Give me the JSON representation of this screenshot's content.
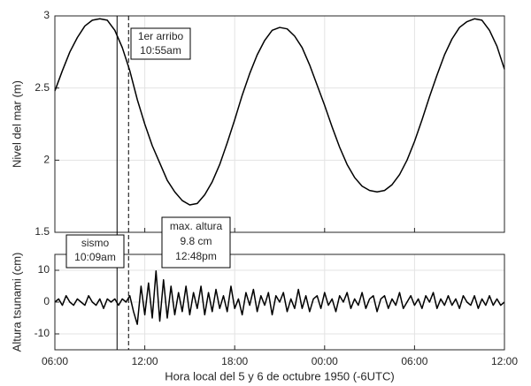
{
  "chart_data": [
    {
      "type": "line",
      "ylabel": "Nivel del mar (m)",
      "x": [
        6,
        6.5,
        7,
        7.5,
        8,
        8.5,
        9,
        9.5,
        10,
        10.5,
        11,
        11.5,
        12,
        12.5,
        13,
        13.5,
        14,
        14.5,
        15,
        15.5,
        16,
        16.5,
        17,
        17.5,
        18,
        18.5,
        19,
        19.5,
        20,
        20.5,
        21,
        21.5,
        22,
        22.5,
        23,
        23.5,
        24,
        24.5,
        25,
        25.5,
        26,
        26.5,
        27,
        27.5,
        28,
        28.5,
        29,
        29.5,
        30,
        30.5,
        31,
        31.5,
        32,
        32.5,
        33,
        33.5,
        34,
        34.5,
        35,
        35.5,
        36
      ],
      "series": [
        {
          "color": "#000000",
          "values": [
            2.48,
            2.62,
            2.75,
            2.85,
            2.93,
            2.97,
            2.98,
            2.97,
            2.9,
            2.78,
            2.62,
            2.42,
            2.25,
            2.1,
            1.98,
            1.86,
            1.78,
            1.72,
            1.69,
            1.7,
            1.76,
            1.85,
            1.97,
            2.12,
            2.28,
            2.45,
            2.6,
            2.73,
            2.83,
            2.9,
            2.92,
            2.91,
            2.86,
            2.78,
            2.66,
            2.52,
            2.38,
            2.23,
            2.09,
            1.97,
            1.88,
            1.82,
            1.79,
            1.78,
            1.79,
            1.83,
            1.9,
            2.0,
            2.13,
            2.28,
            2.44,
            2.59,
            2.73,
            2.84,
            2.92,
            2.96,
            2.98,
            2.97,
            2.9,
            2.79,
            2.63
          ]
        }
      ],
      "xlim": [
        6,
        36
      ],
      "xticks": [
        6,
        12,
        18,
        24,
        30,
        36
      ],
      "ylim": [
        1.5,
        3
      ],
      "yticks": [
        1.5,
        2,
        2.5,
        3
      ],
      "grid": true,
      "events": [
        {
          "x": 10.15,
          "dashed": false,
          "label": [
            "sismo",
            "10:09am"
          ]
        },
        {
          "x": 10.9167,
          "dashed": true,
          "label": [
            "1er arribo",
            "10:55am"
          ]
        }
      ]
    },
    {
      "type": "line",
      "ylabel": "Altura tsunami (cm)",
      "xlabel": "Hora local del 5 y 6 de octubre 1950 (-6UTC)",
      "x": [
        6,
        6.25,
        6.5,
        6.75,
        7,
        7.25,
        7.5,
        7.75,
        8,
        8.25,
        8.5,
        8.75,
        9,
        9.25,
        9.5,
        9.75,
        10,
        10.25,
        10.5,
        10.75,
        11,
        11.25,
        11.5,
        11.75,
        12,
        12.25,
        12.5,
        12.75,
        13,
        13.25,
        13.5,
        13.75,
        14,
        14.25,
        14.5,
        14.75,
        15,
        15.25,
        15.5,
        15.75,
        16,
        16.25,
        16.5,
        16.75,
        17,
        17.25,
        17.5,
        17.75,
        18,
        18.25,
        18.5,
        18.75,
        19,
        19.25,
        19.5,
        19.75,
        20,
        20.25,
        20.5,
        20.75,
        21,
        21.25,
        21.5,
        21.75,
        22,
        22.25,
        22.5,
        22.75,
        23,
        23.25,
        23.5,
        23.75,
        24,
        24.25,
        24.5,
        24.75,
        25,
        25.25,
        25.5,
        25.75,
        26,
        26.25,
        26.5,
        26.75,
        27,
        27.25,
        27.5,
        27.75,
        28,
        28.25,
        28.5,
        28.75,
        29,
        29.25,
        29.5,
        29.75,
        30,
        30.25,
        30.5,
        30.75,
        31,
        31.25,
        31.5,
        31.75,
        32,
        32.25,
        32.5,
        32.75,
        33,
        33.25,
        33.5,
        33.75,
        34,
        34.25,
        34.5,
        34.75,
        35,
        35.25,
        35.5,
        35.75,
        36
      ],
      "series": [
        {
          "color": "#000000",
          "values": [
            0,
            1,
            -1,
            2,
            0,
            -1,
            1,
            0,
            -1,
            2,
            0,
            -1,
            1,
            -2,
            1,
            0,
            1,
            -1,
            1,
            0,
            2,
            -3,
            -7,
            5,
            -4,
            6,
            -5,
            9.8,
            -6,
            7,
            -5,
            5,
            -4,
            3,
            -3,
            5,
            -4,
            3,
            -2,
            5,
            -4,
            3,
            -3,
            4,
            -2,
            2,
            -3,
            5,
            -2,
            1,
            -4,
            3,
            -1,
            4,
            -3,
            2,
            -1,
            3,
            -4,
            2,
            0,
            3,
            -3,
            1,
            -2,
            4,
            -2,
            2,
            -3,
            1,
            2,
            -2,
            3,
            -1,
            1,
            -3,
            2,
            0,
            3,
            -2,
            1,
            -1,
            3,
            -2,
            1,
            2,
            -3,
            1,
            2,
            -2,
            1,
            -1,
            3,
            -2,
            0,
            2,
            -1,
            1,
            -2,
            2,
            0,
            3,
            -2,
            1,
            -1,
            2,
            -1,
            1,
            -2,
            2,
            0,
            -1,
            2,
            -2,
            1,
            -1,
            2,
            -1,
            1,
            -1,
            0
          ]
        }
      ],
      "xlim": [
        6,
        36
      ],
      "xticks": [
        {
          "value": 6,
          "label": "06:00"
        },
        {
          "value": 12,
          "label": "12:00"
        },
        {
          "value": 18,
          "label": "18:00"
        },
        {
          "value": 24,
          "label": "00:00"
        },
        {
          "value": 30,
          "label": "06:00"
        },
        {
          "value": 36,
          "label": "12:00"
        }
      ],
      "ylim": [
        -15,
        15
      ],
      "yticks": [
        -10,
        0,
        10
      ],
      "grid": true,
      "annotation": [
        "max. altura",
        "9.8 cm",
        "12:48pm"
      ]
    }
  ]
}
